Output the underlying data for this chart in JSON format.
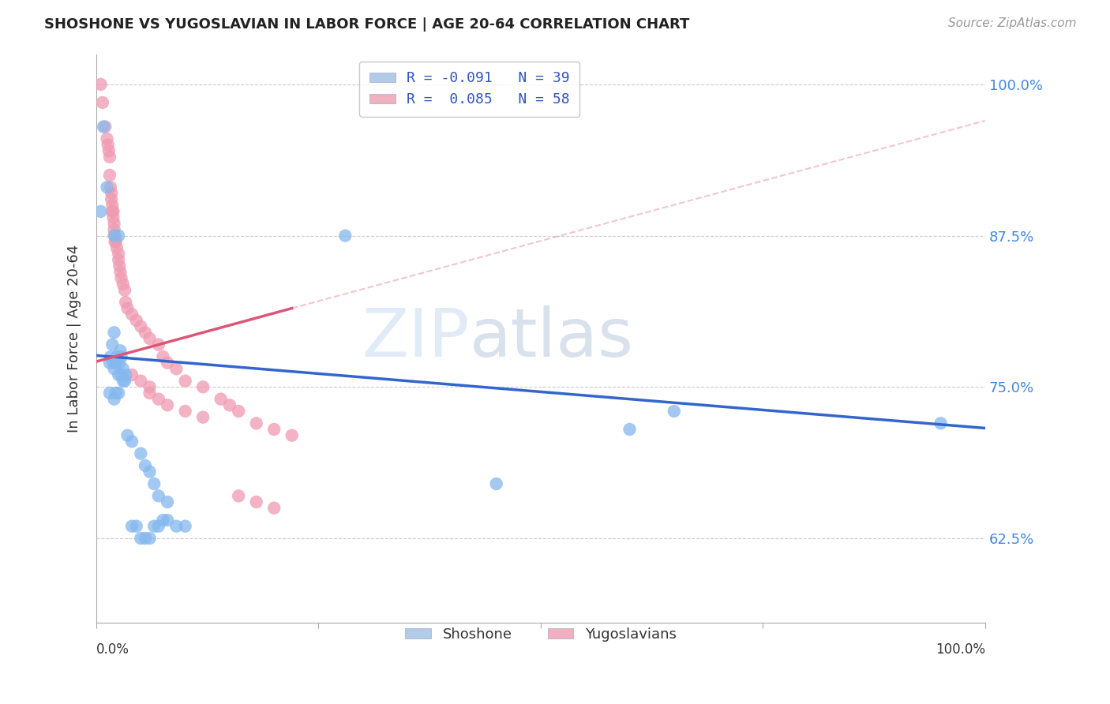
{
  "title": "SHOSHONE VS YUGOSLAVIAN IN LABOR FORCE | AGE 20-64 CORRELATION CHART",
  "source": "Source: ZipAtlas.com",
  "ylabel": "In Labor Force | Age 20-64",
  "ytick_labels": [
    "62.5%",
    "75.0%",
    "87.5%",
    "100.0%"
  ],
  "ytick_values": [
    0.625,
    0.75,
    0.875,
    1.0
  ],
  "xlim": [
    0.0,
    1.0
  ],
  "ylim": [
    0.555,
    1.025
  ],
  "watermark_zip": "ZIP",
  "watermark_atlas": "atlas",
  "shoshone_color": "#85b8ee",
  "shoshone_edge": "#85b8ee",
  "yugoslavian_color": "#f09ab0",
  "yugoslavian_edge": "#f09ab0",
  "shoshone_line_color": "#3366cc",
  "yugoslavian_line_color": "#dd5577",
  "yugoslavian_dashed_color": "#e8a0b0",
  "legend_box_colors": [
    "#b0cce8",
    "#f0b0c0"
  ],
  "shoshone_scatter": [
    [
      0.005,
      0.895
    ],
    [
      0.008,
      0.965
    ],
    [
      0.012,
      0.915
    ],
    [
      0.02,
      0.875
    ],
    [
      0.025,
      0.875
    ],
    [
      0.02,
      0.795
    ],
    [
      0.015,
      0.77
    ],
    [
      0.016,
      0.775
    ],
    [
      0.018,
      0.785
    ],
    [
      0.019,
      0.77
    ],
    [
      0.02,
      0.765
    ],
    [
      0.022,
      0.77
    ],
    [
      0.023,
      0.775
    ],
    [
      0.025,
      0.76
    ],
    [
      0.026,
      0.77
    ],
    [
      0.027,
      0.78
    ],
    [
      0.028,
      0.775
    ],
    [
      0.028,
      0.76
    ],
    [
      0.03,
      0.765
    ],
    [
      0.03,
      0.755
    ],
    [
      0.032,
      0.755
    ],
    [
      0.033,
      0.76
    ],
    [
      0.015,
      0.745
    ],
    [
      0.02,
      0.74
    ],
    [
      0.022,
      0.745
    ],
    [
      0.025,
      0.745
    ],
    [
      0.035,
      0.71
    ],
    [
      0.04,
      0.705
    ],
    [
      0.05,
      0.695
    ],
    [
      0.055,
      0.685
    ],
    [
      0.06,
      0.68
    ],
    [
      0.065,
      0.67
    ],
    [
      0.07,
      0.66
    ],
    [
      0.08,
      0.655
    ],
    [
      0.04,
      0.635
    ],
    [
      0.045,
      0.635
    ],
    [
      0.05,
      0.625
    ],
    [
      0.055,
      0.625
    ],
    [
      0.06,
      0.625
    ],
    [
      0.065,
      0.635
    ],
    [
      0.07,
      0.635
    ],
    [
      0.075,
      0.64
    ],
    [
      0.08,
      0.64
    ],
    [
      0.09,
      0.635
    ],
    [
      0.1,
      0.635
    ],
    [
      0.28,
      0.875
    ],
    [
      0.45,
      0.67
    ],
    [
      0.6,
      0.715
    ],
    [
      0.65,
      0.73
    ],
    [
      0.95,
      0.72
    ]
  ],
  "yugoslavian_scatter": [
    [
      0.005,
      1.0
    ],
    [
      0.007,
      0.985
    ],
    [
      0.01,
      0.965
    ],
    [
      0.012,
      0.955
    ],
    [
      0.013,
      0.95
    ],
    [
      0.014,
      0.945
    ],
    [
      0.015,
      0.94
    ],
    [
      0.015,
      0.925
    ],
    [
      0.016,
      0.915
    ],
    [
      0.017,
      0.91
    ],
    [
      0.017,
      0.905
    ],
    [
      0.018,
      0.9
    ],
    [
      0.018,
      0.895
    ],
    [
      0.019,
      0.895
    ],
    [
      0.019,
      0.89
    ],
    [
      0.02,
      0.885
    ],
    [
      0.02,
      0.88
    ],
    [
      0.021,
      0.875
    ],
    [
      0.021,
      0.87
    ],
    [
      0.022,
      0.87
    ],
    [
      0.023,
      0.865
    ],
    [
      0.025,
      0.86
    ],
    [
      0.025,
      0.855
    ],
    [
      0.026,
      0.85
    ],
    [
      0.027,
      0.845
    ],
    [
      0.028,
      0.84
    ],
    [
      0.03,
      0.835
    ],
    [
      0.032,
      0.83
    ],
    [
      0.033,
      0.82
    ],
    [
      0.035,
      0.815
    ],
    [
      0.04,
      0.81
    ],
    [
      0.045,
      0.805
    ],
    [
      0.05,
      0.8
    ],
    [
      0.055,
      0.795
    ],
    [
      0.06,
      0.79
    ],
    [
      0.07,
      0.785
    ],
    [
      0.075,
      0.775
    ],
    [
      0.08,
      0.77
    ],
    [
      0.09,
      0.765
    ],
    [
      0.1,
      0.755
    ],
    [
      0.12,
      0.75
    ],
    [
      0.14,
      0.74
    ],
    [
      0.15,
      0.735
    ],
    [
      0.16,
      0.73
    ],
    [
      0.18,
      0.72
    ],
    [
      0.2,
      0.715
    ],
    [
      0.22,
      0.71
    ],
    [
      0.04,
      0.76
    ],
    [
      0.05,
      0.755
    ],
    [
      0.06,
      0.75
    ],
    [
      0.06,
      0.745
    ],
    [
      0.07,
      0.74
    ],
    [
      0.08,
      0.735
    ],
    [
      0.1,
      0.73
    ],
    [
      0.12,
      0.725
    ],
    [
      0.16,
      0.66
    ],
    [
      0.18,
      0.655
    ],
    [
      0.2,
      0.65
    ]
  ],
  "shoshone_line": {
    "x0": 0.0,
    "y0": 0.776,
    "x1": 1.0,
    "y1": 0.716
  },
  "yugoslavian_solid_line": {
    "x0": 0.0,
    "y0": 0.771,
    "x1": 0.22,
    "y1": 0.815
  },
  "yugoslavian_dashed_line": {
    "x0": 0.22,
    "y0": 0.815,
    "x1": 1.0,
    "y1": 0.97
  }
}
